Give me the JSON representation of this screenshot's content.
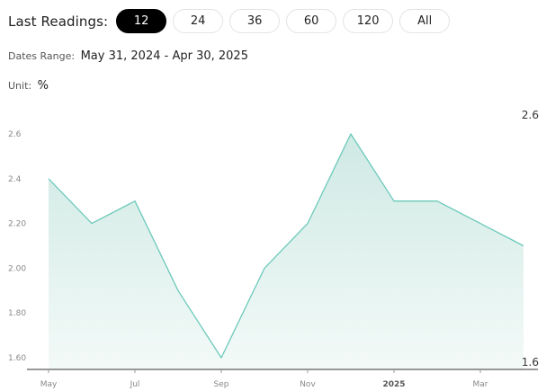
{
  "header": {
    "last_readings_label": "Last Readings:",
    "options": [
      "12",
      "24",
      "36",
      "60",
      "120",
      "All"
    ],
    "selected": "12"
  },
  "dates_range": {
    "label": "Dates Range:",
    "value": "May 31, 2024 - Apr 30, 2025"
  },
  "unit": {
    "label": "Unit:",
    "value": "%"
  },
  "colors": {
    "line": "#6cc9ba",
    "area_top": "#cfe9e4",
    "area_bottom": "#f3faf8",
    "axis": "#333333",
    "active_button": "#000000"
  },
  "chart_data": {
    "type": "area",
    "x": [
      "2024-05",
      "2024-06",
      "2024-07",
      "2024-08",
      "2024-09",
      "2024-10",
      "2024-11",
      "2024-12",
      "2025-01",
      "2025-02",
      "2025-03",
      "2025-04"
    ],
    "values": [
      2.4,
      2.2,
      2.3,
      1.9,
      1.6,
      2.0,
      2.2,
      2.6,
      2.3,
      2.3,
      2.2,
      2.1
    ],
    "ylim": [
      1.6,
      2.6
    ],
    "y_ticks": [
      "1.60",
      "1.80",
      "2.00",
      "2.20",
      "2.4",
      "2.6"
    ],
    "x_tick_labels": [
      {
        "label": "May",
        "index": 0,
        "bold": false
      },
      {
        "label": "Jul",
        "index": 2,
        "bold": false
      },
      {
        "label": "Sep",
        "index": 4,
        "bold": false
      },
      {
        "label": "Nov",
        "index": 6,
        "bold": false
      },
      {
        "label": "2025",
        "index": 8,
        "bold": true
      },
      {
        "label": "Mar",
        "index": 10,
        "bold": false
      }
    ],
    "max_label": "2.6",
    "min_label": "1.6",
    "grid": false
  }
}
